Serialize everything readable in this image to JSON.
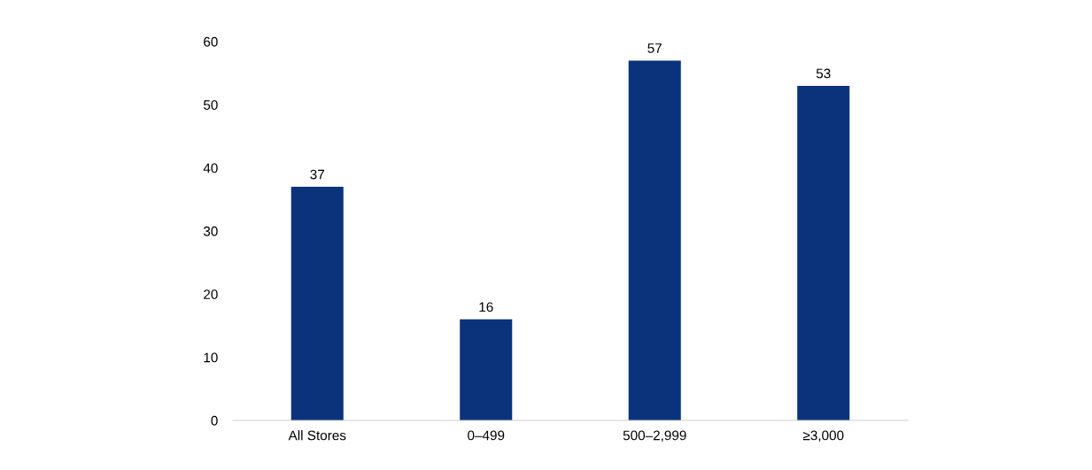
{
  "chart_data": {
    "type": "bar",
    "categories": [
      "All Stores",
      "0–499",
      "500–2,999",
      "≥3,000"
    ],
    "values": [
      37,
      16,
      57,
      53
    ],
    "color": "#0b337b",
    "ylim": [
      0,
      60
    ],
    "yticks": [
      0,
      10,
      20,
      30,
      40,
      50,
      60
    ],
    "data_labels": true,
    "grid": false
  }
}
